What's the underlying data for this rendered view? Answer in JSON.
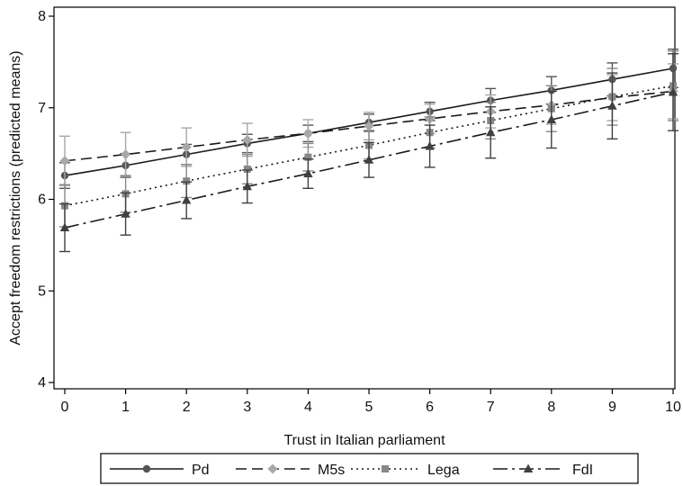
{
  "chart_data": {
    "type": "line",
    "xlabel": "Trust in Italian parliament",
    "ylabel": "Accept freedom restrictions (predicted means)",
    "x": [
      0,
      1,
      2,
      3,
      4,
      5,
      6,
      7,
      8,
      9,
      10
    ],
    "xticks": [
      "0",
      "1",
      "2",
      "3",
      "4",
      "5",
      "6",
      "7",
      "8",
      "9",
      "10"
    ],
    "yticks": [
      "4",
      "5",
      "6",
      "7",
      "8"
    ],
    "xlim": [
      0,
      10
    ],
    "ylim": [
      4,
      8
    ],
    "grid": false,
    "legend_position": "bottom",
    "series": [
      {
        "name": "Pd",
        "color": "#555555",
        "marker": "circle",
        "line_style": "solid",
        "values": [
          6.26,
          6.37,
          6.49,
          6.61,
          6.72,
          6.84,
          6.96,
          7.08,
          7.19,
          7.31,
          7.43
        ],
        "ci_low": [
          6.12,
          6.24,
          6.38,
          6.51,
          6.63,
          6.75,
          6.86,
          6.95,
          7.04,
          7.13,
          7.22
        ],
        "ci_high": [
          6.4,
          6.5,
          6.6,
          6.71,
          6.81,
          6.93,
          7.06,
          7.21,
          7.34,
          7.49,
          7.64
        ]
      },
      {
        "name": "M5s",
        "color": "#a8a8a8",
        "marker": "diamond",
        "line_style": "dashed",
        "values": [
          6.42,
          6.49,
          6.57,
          6.65,
          6.72,
          6.8,
          6.88,
          6.96,
          7.03,
          7.11,
          7.18
        ],
        "ci_low": [
          6.15,
          6.25,
          6.36,
          6.47,
          6.57,
          6.65,
          6.72,
          6.78,
          6.82,
          6.86,
          6.88
        ],
        "ci_high": [
          6.69,
          6.73,
          6.78,
          6.83,
          6.87,
          6.95,
          7.04,
          7.14,
          7.24,
          7.36,
          7.48
        ]
      },
      {
        "name": "Lega",
        "color": "#888888",
        "marker": "square",
        "line_style": "dotted",
        "values": [
          5.93,
          6.06,
          6.2,
          6.33,
          6.46,
          6.59,
          6.73,
          6.86,
          6.99,
          7.12,
          7.24
        ],
        "ci_low": [
          5.7,
          5.86,
          6.02,
          6.17,
          6.31,
          6.44,
          6.56,
          6.66,
          6.74,
          6.81,
          6.86
        ],
        "ci_high": [
          6.16,
          6.26,
          6.38,
          6.49,
          6.61,
          6.74,
          6.9,
          7.06,
          7.24,
          7.43,
          7.62
        ]
      },
      {
        "name": "FdI",
        "color": "#404040",
        "marker": "triangle",
        "line_style": "dashdot",
        "values": [
          5.69,
          5.84,
          5.99,
          6.14,
          6.28,
          6.43,
          6.58,
          6.73,
          6.87,
          7.02,
          7.17
        ],
        "ci_low": [
          5.43,
          5.61,
          5.79,
          5.96,
          6.12,
          6.24,
          6.35,
          6.45,
          6.56,
          6.66,
          6.75
        ],
        "ci_high": [
          5.95,
          6.07,
          6.19,
          6.32,
          6.44,
          6.62,
          6.81,
          7.01,
          7.18,
          7.38,
          7.59
        ]
      }
    ]
  }
}
